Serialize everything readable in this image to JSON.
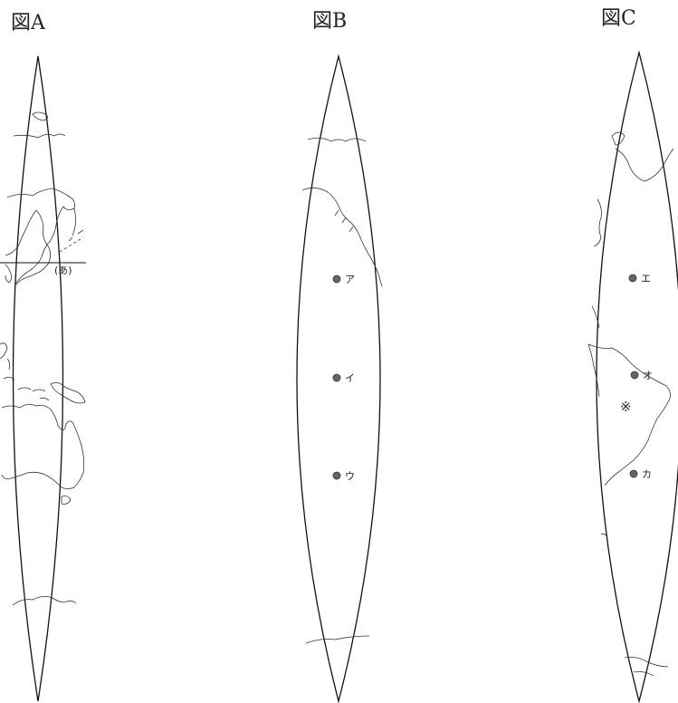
{
  "figures": [
    {
      "title": "図A",
      "marker_label": "(あ)"
    },
    {
      "title": "図B",
      "points": [
        "ア",
        "イ",
        "ウ"
      ]
    },
    {
      "title": "図C",
      "points": [
        "エ",
        "オ",
        "カ"
      ],
      "region_mark": "※"
    }
  ]
}
